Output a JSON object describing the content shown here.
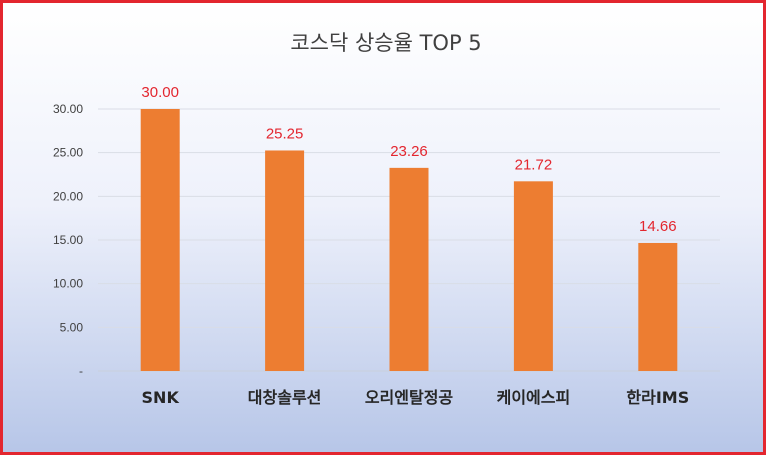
{
  "chart_data": {
    "type": "bar",
    "title": "코스닥 상승율 TOP 5",
    "categories": [
      "SNK",
      "대창솔루션",
      "오리엔탈정공",
      "케이에스피",
      "한라IMS"
    ],
    "values": [
      30.0,
      25.25,
      23.26,
      21.72,
      14.66
    ],
    "value_labels": [
      "30.00",
      "25.25",
      "23.26",
      "21.72",
      "14.66"
    ],
    "ylim": [
      0,
      30
    ],
    "yticks": [
      0,
      5,
      10,
      15,
      20,
      25,
      30
    ],
    "ytick_labels": [
      "-",
      "5.00",
      "10.00",
      "15.00",
      "20.00",
      "25.00",
      "30.00"
    ],
    "grid": true,
    "legend": "none",
    "colors": {
      "bar": "#ed7d31",
      "value_label": "#e3262f",
      "frame_border": "#e3262f"
    }
  }
}
